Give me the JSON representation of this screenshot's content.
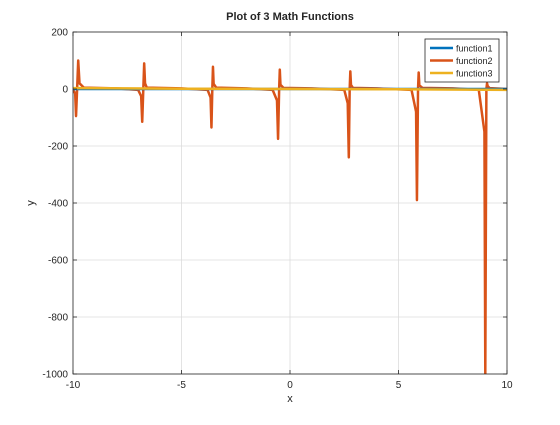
{
  "chart_data": {
    "type": "line",
    "title": "Plot of 3 Math Functions",
    "xlabel": "x",
    "ylabel": "y",
    "xlim": [
      -10,
      10
    ],
    "ylim": [
      -1000,
      200
    ],
    "x_ticks": [
      -10,
      -5,
      0,
      5,
      10
    ],
    "y_ticks": [
      -1000,
      -800,
      -600,
      -400,
      -200,
      0,
      200
    ],
    "grid": true,
    "legend_position": "top-right",
    "series": [
      {
        "name": "function1",
        "color": "#0072BD",
        "x": [
          -10,
          -5,
          0,
          5,
          10
        ],
        "y": [
          0,
          0,
          0,
          0,
          0
        ]
      },
      {
        "name": "function2",
        "color": "#D95319",
        "x": [
          -10,
          -9.9,
          -9.86,
          -9.81,
          -9.76,
          -9.7,
          -9.5,
          -8,
          -7,
          -6.86,
          -6.81,
          -6.76,
          -6.72,
          -6.68,
          -6.6,
          -5,
          -3.8,
          -3.66,
          -3.62,
          -3.58,
          -3.55,
          -3.52,
          -3.4,
          -2,
          -0.8,
          -0.6,
          -0.55,
          -0.5,
          -0.47,
          -0.44,
          -0.3,
          1,
          2.5,
          2.66,
          2.71,
          2.75,
          2.78,
          2.81,
          2.9,
          4,
          5.6,
          5.81,
          5.85,
          5.9,
          5.93,
          5.96,
          6.1,
          7.5,
          8.7,
          8.96,
          9.0,
          9.05,
          9.08,
          9.11,
          9.2,
          10
        ],
        "y": [
          -3,
          -15,
          -95,
          0,
          100,
          20,
          5,
          2,
          -3,
          -25,
          -115,
          0,
          90,
          20,
          5,
          2,
          -3,
          -30,
          -135,
          0,
          78,
          18,
          5,
          2,
          -3,
          -40,
          -175,
          0,
          68,
          15,
          4,
          2,
          -3,
          -50,
          -240,
          0,
          62,
          14,
          4,
          2,
          -3,
          -80,
          -390,
          0,
          58,
          13,
          4,
          2,
          -3,
          -150,
          -1000,
          0,
          20,
          10,
          3,
          0
        ]
      },
      {
        "name": "function3",
        "color": "#EDB120",
        "x": [
          -10,
          -5,
          0,
          5,
          10
        ],
        "y": [
          3,
          1,
          0,
          -1,
          -3
        ]
      }
    ]
  }
}
